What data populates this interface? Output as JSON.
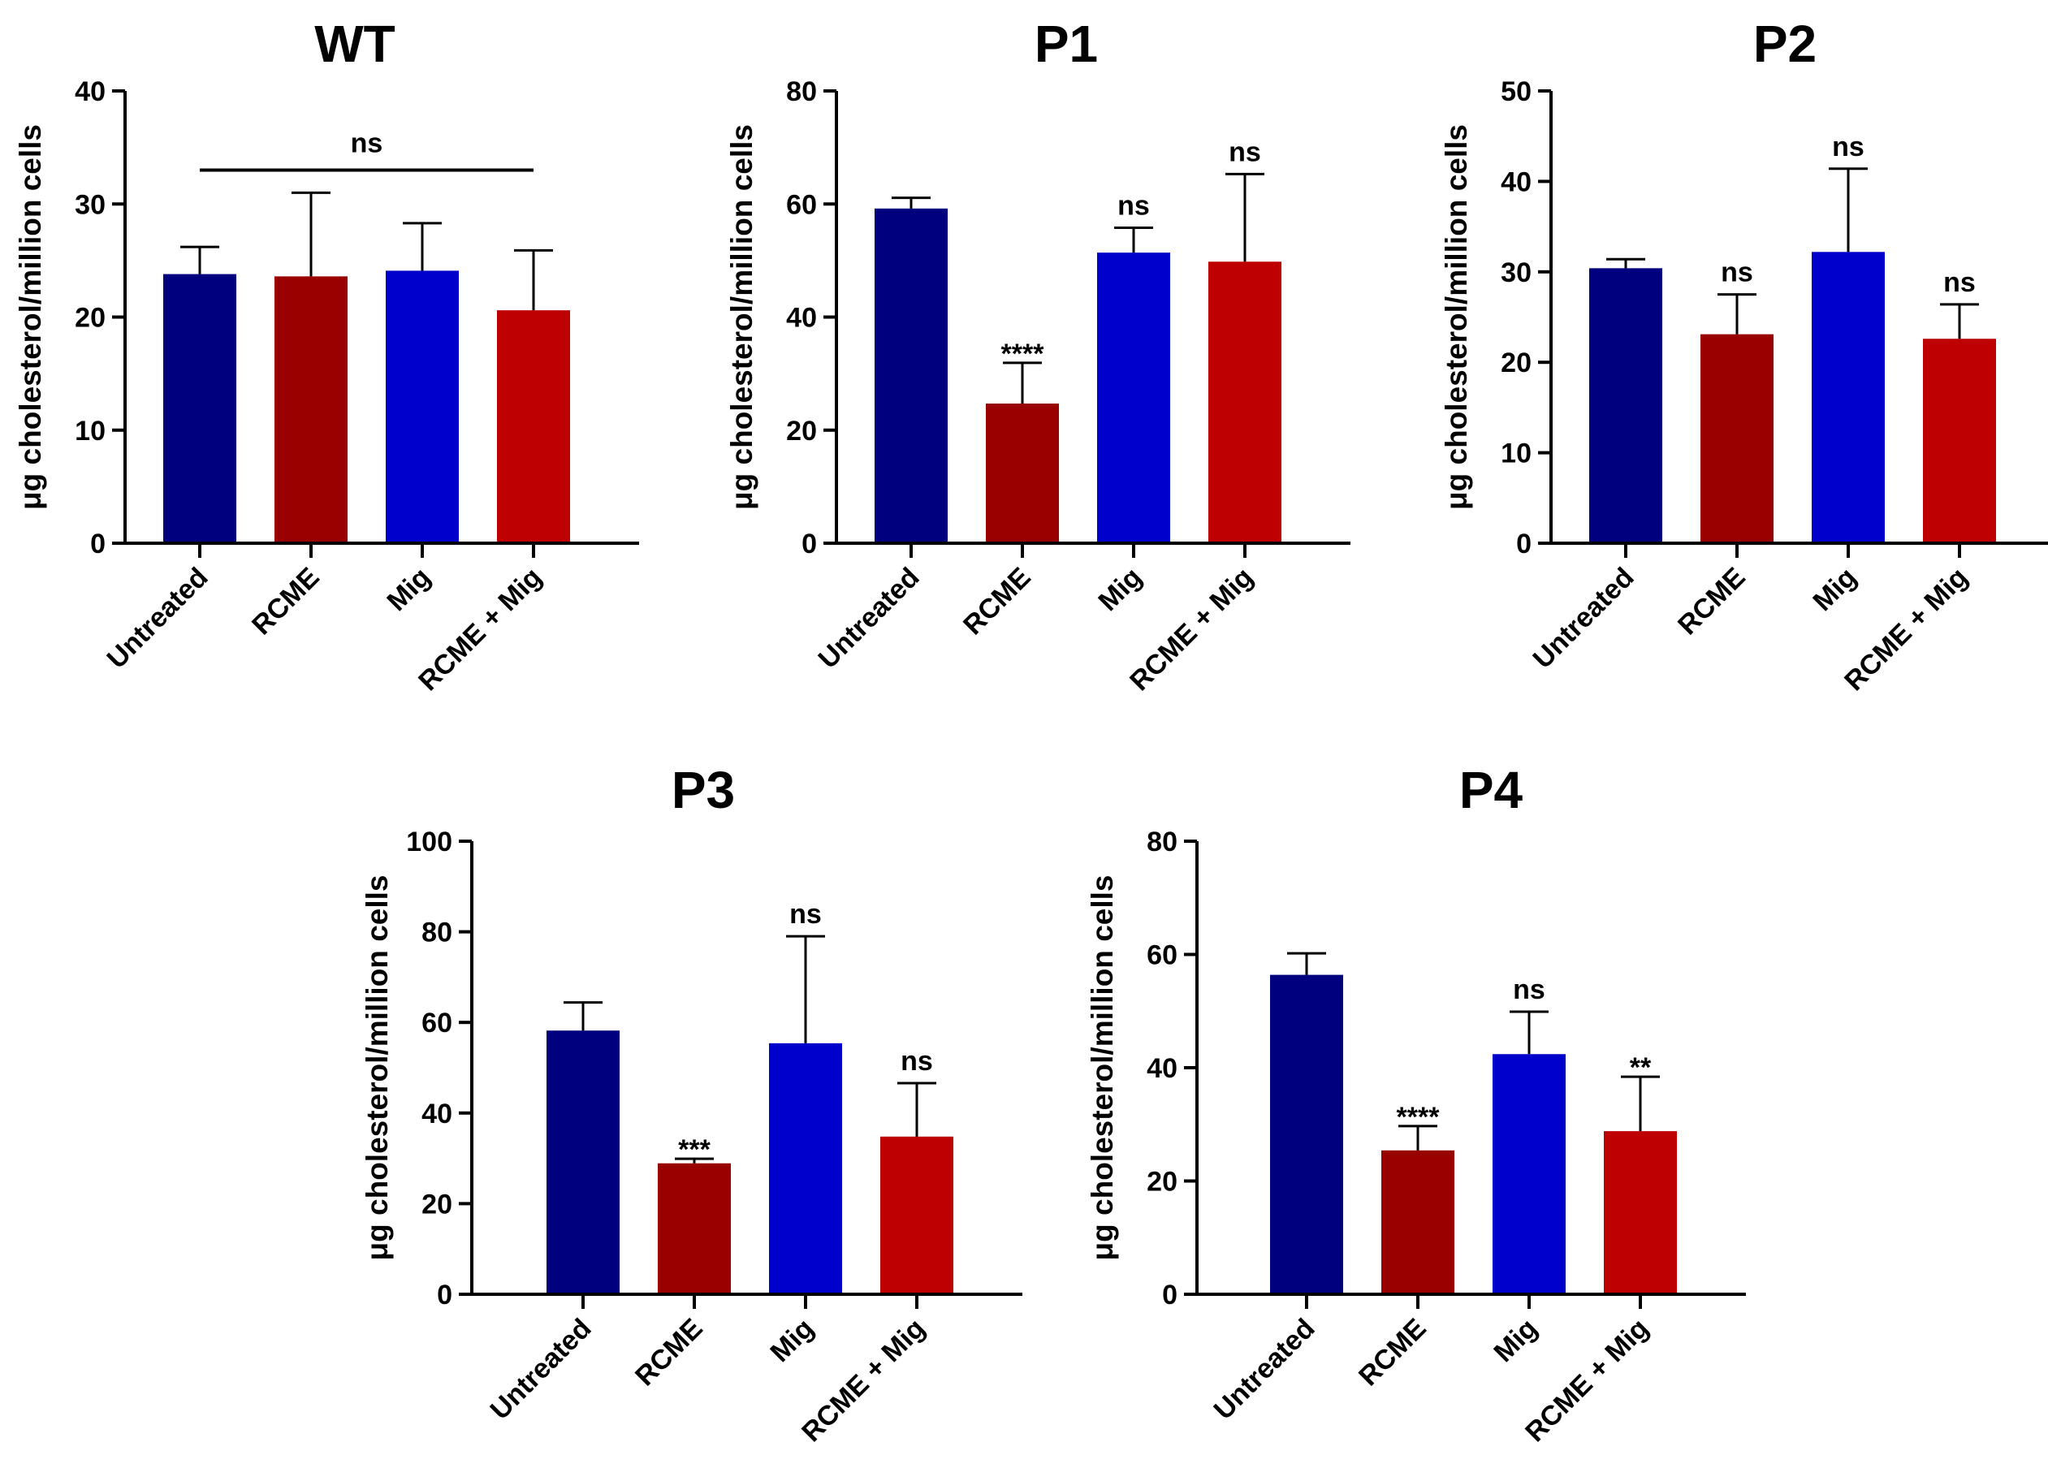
{
  "colors": {
    "untreated": "#00007f",
    "rcme": "#990000",
    "mig": "#0000cc",
    "rcme_mig": "#bf0000"
  },
  "chart_data": [
    {
      "type": "bar",
      "title": "WT",
      "ylabel": "μg cholesterol/million cells",
      "xlabel": "",
      "ylim": [
        0,
        40
      ],
      "yticks": [
        0,
        10,
        20,
        30,
        40
      ],
      "categories": [
        "Untreated",
        "RCME",
        "Mig",
        "RCME + Mig"
      ],
      "values": [
        23.8,
        23.6,
        24.1,
        20.6
      ],
      "errors": [
        2.4,
        7.4,
        4.2,
        5.3
      ],
      "annotations": [
        "",
        "",
        "",
        ""
      ],
      "bracket": {
        "label": "ns",
        "from": 0,
        "to": 3,
        "y": 33
      }
    },
    {
      "type": "bar",
      "title": "P1",
      "ylabel": "μg cholesterol/million cells",
      "xlabel": "",
      "ylim": [
        0,
        80
      ],
      "yticks": [
        0,
        20,
        40,
        60,
        80
      ],
      "categories": [
        "Untreated",
        "RCME",
        "Mig",
        "RCME + Mig"
      ],
      "values": [
        59.2,
        24.7,
        51.4,
        49.8
      ],
      "errors": [
        1.9,
        7.2,
        4.4,
        15.5
      ],
      "annotations": [
        "",
        "****",
        "ns",
        "ns"
      ]
    },
    {
      "type": "bar",
      "title": "P2",
      "ylabel": "μg cholesterol/million cells",
      "xlabel": "",
      "ylim": [
        0,
        50
      ],
      "yticks": [
        0,
        10,
        20,
        30,
        40,
        50
      ],
      "categories": [
        "Untreated",
        "RCME",
        "Mig",
        "RCME + Mig"
      ],
      "values": [
        30.4,
        23.1,
        32.2,
        22.6
      ],
      "errors": [
        1.0,
        4.4,
        9.2,
        3.8
      ],
      "annotations": [
        "",
        "ns",
        "ns",
        "ns"
      ]
    },
    {
      "type": "bar",
      "title": "P3",
      "ylabel": "μg cholesterol/million cells",
      "xlabel": "",
      "ylim": [
        0,
        100
      ],
      "yticks": [
        0,
        20,
        40,
        60,
        80,
        100
      ],
      "categories": [
        "Untreated",
        "RCME",
        "Mig",
        "RCME + Mig"
      ],
      "values": [
        58.2,
        28.9,
        55.4,
        34.8
      ],
      "errors": [
        6.2,
        1.0,
        23.6,
        11.8
      ],
      "annotations": [
        "",
        "***",
        "ns",
        "ns"
      ]
    },
    {
      "type": "bar",
      "title": "P4",
      "ylabel": "μg cholesterol/million cells",
      "xlabel": "",
      "ylim": [
        0,
        80
      ],
      "yticks": [
        0,
        20,
        40,
        60,
        80
      ],
      "categories": [
        "Untreated",
        "RCME",
        "Mig",
        "RCME + Mig"
      ],
      "values": [
        56.4,
        25.4,
        42.4,
        28.8
      ],
      "errors": [
        3.8,
        4.3,
        7.5,
        9.6
      ],
      "annotations": [
        "",
        "****",
        "ns",
        "**"
      ]
    }
  ]
}
